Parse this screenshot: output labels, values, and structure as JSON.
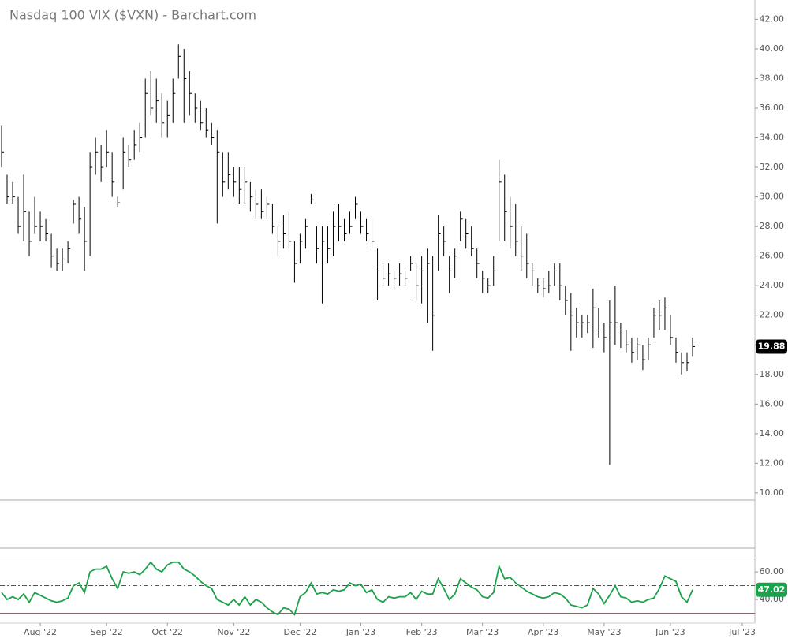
{
  "chart_data": [
    {
      "type": "hlc",
      "title": "Nasdaq 100 VIX ($VXN) - Barchart.com",
      "color": "#000000",
      "ylim": [
        9.57,
        43.3
      ],
      "yticks": [
        {
          "value": 10,
          "label": "10.00"
        },
        {
          "value": 12,
          "label": "12.00"
        },
        {
          "value": 14,
          "label": "14.00"
        },
        {
          "value": 16,
          "label": "16.00"
        },
        {
          "value": 18,
          "label": "18.00"
        },
        {
          "value": 20,
          "label": "20.00"
        },
        {
          "value": 22,
          "label": "22.00"
        },
        {
          "value": 24,
          "label": "24.00"
        },
        {
          "value": 26,
          "label": "26.00"
        },
        {
          "value": 28,
          "label": "28.00"
        },
        {
          "value": 30,
          "label": "30.00"
        },
        {
          "value": 32,
          "label": "32.00"
        },
        {
          "value": 34,
          "label": "34.00"
        },
        {
          "value": 36,
          "label": "36.00"
        },
        {
          "value": 38,
          "label": "38.00"
        },
        {
          "value": 40,
          "label": "40.00"
        },
        {
          "value": 42,
          "label": "42.00"
        }
      ],
      "high": [
        34.8,
        31.5,
        31,
        30,
        31.5,
        29,
        30,
        29,
        28.5,
        27.5,
        26.5,
        26.5,
        27,
        29.8,
        30,
        29.3,
        33,
        34,
        33.5,
        34.5,
        33,
        30,
        34,
        33.5,
        34.5,
        35,
        38,
        38.5,
        38,
        37,
        36.5,
        38,
        40.3,
        40,
        38.5,
        37,
        36.5,
        36,
        35,
        34.5,
        33,
        33,
        32,
        32,
        32,
        31,
        30.5,
        30.5,
        30,
        29.5,
        28,
        28.8,
        29,
        27,
        27.5,
        28.5,
        30.2,
        28,
        28,
        28,
        29,
        29.5,
        28.5,
        29,
        30,
        29,
        28.5,
        28.5,
        26.5,
        25.5,
        25.5,
        25,
        25.5,
        25,
        26,
        25.5,
        26,
        26.5,
        26,
        28.8,
        28,
        26,
        26.5,
        29,
        28.5,
        28,
        26.5,
        25,
        24.5,
        26,
        32.5,
        31.5,
        30,
        29.5,
        28,
        27.5,
        25.5,
        24.5,
        24.5,
        25,
        25.5,
        25.5,
        24,
        23.5,
        22.5,
        22,
        22,
        23.8,
        22.5,
        21.5,
        23,
        24,
        21.5,
        21,
        20.5,
        20.5,
        20,
        20.5,
        22.5,
        23,
        23.2,
        22,
        20.5,
        19.5,
        19.5,
        20.5
      ],
      "low": [
        32,
        29.5,
        29.5,
        27.5,
        27,
        26,
        27.5,
        27,
        27,
        25.2,
        25,
        25,
        25.5,
        28.2,
        27.5,
        25,
        26,
        31.5,
        31,
        32,
        30,
        29.3,
        30.5,
        32,
        32.5,
        33,
        34,
        35.5,
        35,
        34,
        34,
        35,
        38,
        35,
        35.5,
        35,
        34.5,
        34,
        33.5,
        28.2,
        30,
        30.5,
        30,
        29.5,
        29.5,
        29,
        28.5,
        28.5,
        28.5,
        27.5,
        26,
        26.5,
        26.5,
        24.2,
        25.5,
        26.5,
        29.5,
        25.5,
        22.8,
        25.5,
        26,
        27,
        27,
        27.5,
        28.5,
        27.5,
        27,
        26.5,
        23,
        24,
        24,
        23.8,
        24,
        24,
        25,
        23,
        22.8,
        21.5,
        19.6,
        25,
        26,
        23.5,
        24.5,
        27,
        26.5,
        26,
        24.5,
        23.5,
        23.5,
        24,
        27,
        27,
        26.5,
        26,
        25,
        24.5,
        24,
        23.5,
        23.2,
        23.5,
        24,
        23,
        22,
        19.6,
        20.5,
        20.5,
        20.8,
        19.8,
        20.5,
        19.5,
        11.9,
        20,
        19.8,
        19.5,
        18.8,
        19,
        18.3,
        19,
        20.5,
        21,
        21,
        20,
        18.8,
        18,
        18.2,
        19.2
      ],
      "close": [
        33,
        30,
        30,
        28,
        29,
        27,
        28,
        28,
        27.5,
        26,
        25.5,
        25.8,
        26.5,
        29.5,
        28.5,
        27,
        32,
        33,
        32,
        33,
        31,
        29.6,
        33,
        32.5,
        33.5,
        34,
        37,
        36,
        36.5,
        35,
        35.5,
        37,
        39.5,
        38,
        37,
        36,
        35,
        34.5,
        34,
        33,
        31,
        31.5,
        31,
        30.5,
        31,
        30,
        29.5,
        29,
        29.5,
        28,
        27,
        27.5,
        27,
        25.5,
        27,
        28,
        29.8,
        26.5,
        27,
        26.5,
        28,
        28,
        27.5,
        28,
        29.5,
        28,
        27.5,
        27,
        25,
        24.5,
        24.8,
        24.5,
        24.8,
        24.5,
        25.5,
        24,
        25,
        25.5,
        22,
        27.5,
        27,
        25,
        26,
        28.5,
        27.5,
        26.5,
        25.5,
        24.5,
        24,
        25,
        31,
        29,
        28,
        27,
        26,
        25.5,
        25,
        24,
        23.8,
        24,
        25,
        24,
        23,
        22,
        21.5,
        21.5,
        21.5,
        22.5,
        21,
        20.5,
        21.5,
        21.5,
        21,
        20,
        19.5,
        20,
        19,
        20,
        22,
        22,
        22.5,
        20.5,
        19.5,
        18.8,
        18.8,
        19.88
      ]
    },
    {
      "type": "line",
      "color": "#1aa34a",
      "ylim": [
        22.9,
        76.6
      ],
      "yticks": [
        {
          "value": 40,
          "label": "40.00"
        },
        {
          "value": 60,
          "label": "60.00"
        }
      ],
      "reference_lines": [
        {
          "value": 70,
          "color": "#3b63d8"
        },
        {
          "value": 50,
          "color": "#555555"
        },
        {
          "value": 30,
          "color": "#e02020"
        }
      ],
      "categories": [
        null,
        null,
        null,
        null,
        null,
        null,
        null,
        "Aug '22",
        null,
        null,
        null,
        null,
        null,
        null,
        null,
        null,
        null,
        null,
        null,
        "Sep '22",
        null,
        null,
        null,
        null,
        null,
        null,
        null,
        null,
        null,
        null,
        "Oct '22",
        null,
        null,
        null,
        null,
        null,
        null,
        null,
        null,
        null,
        null,
        null,
        "Nov '22",
        null,
        null,
        null,
        null,
        null,
        null,
        null,
        null,
        null,
        null,
        null,
        "Dec '22",
        null,
        null,
        null,
        null,
        null,
        null,
        null,
        null,
        null,
        null,
        "Jan '23",
        null,
        null,
        null,
        null,
        null,
        null,
        null,
        null,
        null,
        null,
        "Feb '23",
        null,
        null,
        null,
        null,
        null,
        null,
        null,
        null,
        null,
        null,
        "Mar '23",
        null,
        null,
        null,
        null,
        null,
        null,
        null,
        null,
        null,
        null,
        "Apr '23",
        null,
        null,
        null,
        null,
        null,
        null,
        null,
        null,
        null,
        null,
        "May '23",
        null,
        null,
        null,
        null,
        null,
        null,
        null,
        null,
        null,
        null,
        null,
        "Jun '23",
        null,
        null,
        null,
        null,
        null,
        null,
        null,
        null,
        null,
        null,
        null,
        null,
        "Jul '23"
      ],
      "values": [
        45,
        40,
        42,
        40,
        44,
        38,
        45,
        43,
        41,
        39,
        38,
        39,
        41,
        50,
        52,
        45,
        60,
        62,
        62,
        64,
        55,
        48,
        60,
        59,
        60,
        58,
        62,
        67,
        62,
        60,
        65,
        67,
        67,
        62,
        60,
        57,
        53,
        50,
        48,
        40,
        38,
        36,
        40,
        36,
        42,
        36,
        40,
        38,
        34,
        31,
        29,
        34,
        33,
        29,
        42,
        45,
        52,
        44,
        45,
        44,
        47,
        46,
        47,
        52,
        50,
        51,
        45,
        47,
        40,
        38,
        42,
        41,
        42,
        42,
        45,
        40,
        46,
        44,
        44,
        55,
        48,
        40,
        44,
        55,
        52,
        49,
        47,
        42,
        41,
        45,
        64,
        55,
        56,
        52,
        49,
        46,
        44,
        42,
        41,
        42,
        45,
        44,
        41,
        36,
        35,
        34,
        36,
        48,
        44,
        37,
        43,
        50,
        42,
        41,
        38,
        39,
        38,
        40,
        41,
        48,
        57,
        55,
        53,
        42,
        38,
        47.02,
        null,
        null,
        null,
        null,
        null,
        null,
        null,
        null,
        null
      ]
    }
  ]
}
